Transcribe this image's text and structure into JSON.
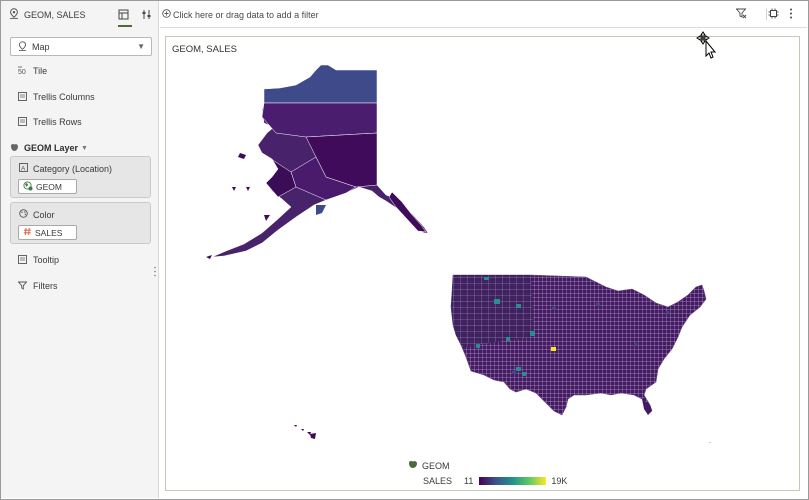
{
  "panel": {
    "title": "GEOM, SALES",
    "viz_type": "Map",
    "items": {
      "tile": "Tile",
      "trellis_columns": "Trellis Columns",
      "trellis_rows": "Trellis Rows",
      "tooltip": "Tooltip",
      "filters": "Filters"
    },
    "layer": {
      "name": "GEOM Layer",
      "category_label": "Category (Location)",
      "category_value": "GEOM",
      "color_label": "Color",
      "color_value": "SALES"
    }
  },
  "filter_bar": {
    "placeholder": "Click here or drag data to add a filter"
  },
  "visualization": {
    "title": "GEOM, SALES",
    "legend": {
      "layer": "GEOM",
      "measure": "SALES",
      "min": "11",
      "max": "19K"
    }
  },
  "colors": {
    "accent": "#4f6a3a",
    "map_low": "#440154",
    "map_mid": "#3e4989",
    "map_high": "#fde725",
    "teal": "#2a8d8e"
  },
  "icons": {
    "title": "map-pin-icon",
    "tab_grammar": "grammar-tab-icon",
    "tab_properties": "properties-tab-icon",
    "add_filter": "plus-circle-icon",
    "filter_options": "filter-icon",
    "canvas_settings": "chip-icon",
    "more": "more-vertical-icon"
  }
}
